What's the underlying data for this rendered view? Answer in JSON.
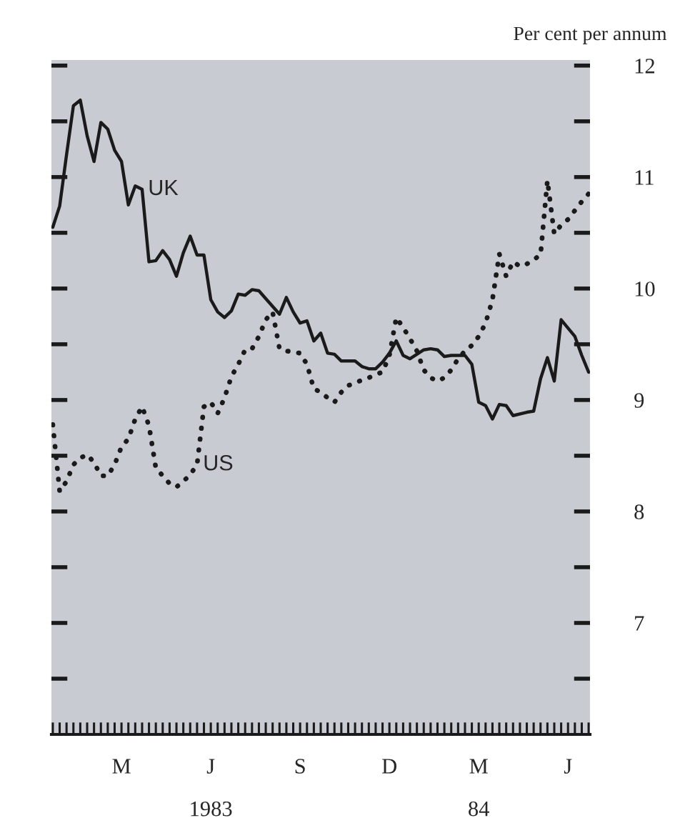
{
  "chart_data": {
    "type": "line",
    "ylabel": "Per cent per annum",
    "categories": [
      null,
      null,
      null,
      null,
      null,
      null,
      null,
      null,
      null,
      null,
      "M",
      null,
      null,
      null,
      null,
      null,
      null,
      null,
      null,
      null,
      null,
      null,
      null,
      "J\n\n1983",
      null,
      null,
      null,
      null,
      null,
      null,
      null,
      null,
      null,
      null,
      null,
      null,
      "S",
      null,
      null,
      null,
      null,
      null,
      null,
      null,
      null,
      null,
      null,
      null,
      null,
      "D",
      null,
      null,
      null,
      null,
      null,
      null,
      null,
      null,
      null,
      null,
      null,
      null,
      "M\n\n84",
      null,
      null,
      null,
      null,
      null,
      null,
      null,
      null,
      null,
      null,
      null,
      null,
      "J",
      null,
      null,
      null
    ],
    "series": [
      {
        "name": "UK",
        "color": "#1a1a1a",
        "line_style": "solid",
        "values": [
          10.55,
          10.74,
          11.2,
          11.64,
          11.69,
          11.37,
          11.14,
          11.49,
          11.43,
          11.24,
          11.14,
          10.75,
          10.92,
          10.89,
          10.24,
          10.25,
          10.34,
          10.26,
          10.11,
          10.32,
          10.47,
          10.3,
          10.3,
          9.9,
          9.79,
          9.74,
          9.8,
          9.95,
          9.94,
          9.99,
          9.98,
          9.91,
          null,
          9.77,
          9.92,
          9.79,
          9.69,
          9.71,
          9.53,
          9.6,
          9.42,
          9.41,
          9.35,
          null,
          9.35,
          9.3,
          9.28,
          9.28,
          9.34,
          9.42,
          9.53,
          9.4,
          9.37,
          null,
          9.45,
          9.46,
          9.45,
          9.39,
          9.4,
          null,
          9.4,
          9.32,
          8.98,
          8.95,
          8.83,
          8.96,
          8.95,
          8.86,
          null,
          8.89,
          8.9,
          9.19,
          9.38,
          9.17,
          9.72,
          null,
          9.57,
          9.4,
          9.25
        ]
      },
      {
        "name": "US",
        "color": "#1a1a1a",
        "line_style": "dotted",
        "values": [
          8.78,
          8.18,
          8.27,
          8.42,
          8.48,
          8.51,
          8.44,
          8.32,
          8.32,
          8.42,
          8.58,
          8.65,
          8.83,
          8.94,
          8.77,
          8.39,
          8.32,
          8.25,
          8.22,
          8.27,
          8.33,
          8.42,
          8.94,
          8.98,
          8.88,
          9.02,
          9.21,
          9.32,
          9.45,
          9.46,
          9.57,
          9.72,
          9.79,
          9.46,
          9.44,
          9.43,
          9.42,
          9.32,
          9.1,
          9.07,
          9.02,
          8.98,
          9.07,
          9.13,
          9.15,
          9.18,
          9.2,
          9.23,
          9.25,
          9.4,
          9.74,
          9.65,
          9.55,
          9.44,
          9.27,
          9.2,
          9.17,
          9.2,
          9.27,
          9.37,
          9.44,
          9.49,
          9.57,
          9.69,
          9.9,
          10.31,
          10.11,
          10.24,
          10.2,
          10.22,
          10.26,
          10.3,
          10.97,
          10.49,
          10.57,
          10.62,
          10.7,
          10.78,
          10.85
        ]
      }
    ],
    "ylim": [
      6.0,
      12.05
    ],
    "yticks": [
      12,
      {
        "value": 11.5,
        "label": null
      },
      11,
      {
        "value": 10.5,
        "label": null
      },
      10,
      {
        "value": 9.5,
        "label": null
      },
      9,
      {
        "value": 8.5,
        "label": null
      },
      8,
      {
        "value": 7.5,
        "label": null
      },
      7,
      {
        "value": 6.5,
        "label": null
      }
    ],
    "grid": false,
    "legend": false,
    "marker": "none"
  }
}
